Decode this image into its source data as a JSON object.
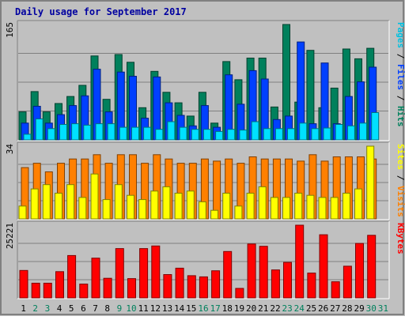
{
  "chart_data": [
    {
      "type": "bar",
      "title": "Daily usage for September 2017",
      "categories": [
        "1",
        "2",
        "3",
        "4",
        "5",
        "6",
        "7",
        "8",
        "9",
        "10",
        "11",
        "12",
        "13",
        "14",
        "15",
        "16",
        "17",
        "18",
        "19",
        "20",
        "21",
        "22",
        "23",
        "24",
        "25",
        "26",
        "27",
        "28",
        "29",
        "30",
        "31"
      ],
      "weekend_days": [
        "2",
        "3",
        "9",
        "10",
        "16",
        "17",
        "23",
        "24",
        "30",
        "31"
      ],
      "ylim": [
        0,
        165
      ],
      "y_tick_label": "165",
      "axis_labels": [
        "Pages",
        "Files",
        "Hits"
      ],
      "series": [
        {
          "name": "Hits",
          "color": "#00805c",
          "values": [
            40,
            69,
            40,
            52,
            62,
            78,
            120,
            58,
            122,
            111,
            46,
            98,
            68,
            53,
            34,
            68,
            24,
            112,
            86,
            117,
            117,
            47,
            165,
            54,
            128,
            46,
            74,
            130,
            116,
            131,
            0
          ]
        },
        {
          "name": "Files",
          "color": "#0040ff",
          "values": [
            24,
            48,
            24,
            36,
            49,
            63,
            101,
            40,
            97,
            91,
            31,
            90,
            53,
            35,
            20,
            49,
            18,
            93,
            51,
            99,
            87,
            29,
            34,
            140,
            23,
            110,
            23,
            62,
            83,
            104,
            0
          ]
        },
        {
          "name": "Pages",
          "color": "#00e0ff",
          "values": [
            8,
            30,
            16,
            22,
            23,
            21,
            23,
            23,
            18,
            18,
            18,
            15,
            26,
            18,
            15,
            15,
            12,
            15,
            14,
            26,
            16,
            16,
            16,
            24,
            16,
            17,
            22,
            20,
            24,
            39,
            0
          ]
        }
      ]
    },
    {
      "type": "bar",
      "categories": [
        "1",
        "2",
        "3",
        "4",
        "5",
        "6",
        "7",
        "8",
        "9",
        "10",
        "11",
        "12",
        "13",
        "14",
        "15",
        "16",
        "17",
        "18",
        "19",
        "20",
        "21",
        "22",
        "23",
        "24",
        "25",
        "26",
        "27",
        "28",
        "29",
        "30",
        "31"
      ],
      "ylim": [
        0,
        34
      ],
      "y_tick_label": "34",
      "axis_labels": [
        "Sites",
        "Visits"
      ],
      "series": [
        {
          "name": "Visits",
          "color": "#ff8000",
          "values": [
            24,
            26,
            22,
            26,
            28,
            28,
            30,
            26,
            30,
            30,
            26,
            30,
            28,
            26,
            26,
            28,
            27,
            28,
            26,
            29,
            28,
            28,
            28,
            27,
            30,
            27,
            29,
            29,
            29,
            28,
            0
          ]
        },
        {
          "name": "Sites",
          "color": "#ffff00",
          "values": [
            6,
            14,
            16,
            12,
            16,
            10,
            21,
            9,
            16,
            11,
            9,
            13,
            15,
            12,
            13,
            8,
            4,
            12,
            6,
            12,
            15,
            10,
            10,
            12,
            11,
            10,
            10,
            12,
            14,
            34,
            0
          ]
        }
      ]
    },
    {
      "type": "bar",
      "categories": [
        "1",
        "2",
        "3",
        "4",
        "5",
        "6",
        "7",
        "8",
        "9",
        "10",
        "11",
        "12",
        "13",
        "14",
        "15",
        "16",
        "17",
        "18",
        "19",
        "20",
        "21",
        "22",
        "23",
        "24",
        "25",
        "26",
        "27",
        "28",
        "29",
        "30",
        "31"
      ],
      "ylim": [
        0,
        25221
      ],
      "y_tick_label": "25221",
      "axis_labels": [
        "KBytes"
      ],
      "series": [
        {
          "name": "KBytes",
          "color": "#ff0000",
          "values": [
            9500,
            5100,
            5100,
            9100,
            14700,
            4800,
            13800,
            6800,
            17100,
            6700,
            17100,
            18000,
            8100,
            10300,
            7700,
            7300,
            9400,
            16100,
            3300,
            18700,
            17900,
            9700,
            12300,
            25221,
            8600,
            21900,
            5600,
            11000,
            18900,
            21700,
            0
          ]
        }
      ]
    }
  ]
}
